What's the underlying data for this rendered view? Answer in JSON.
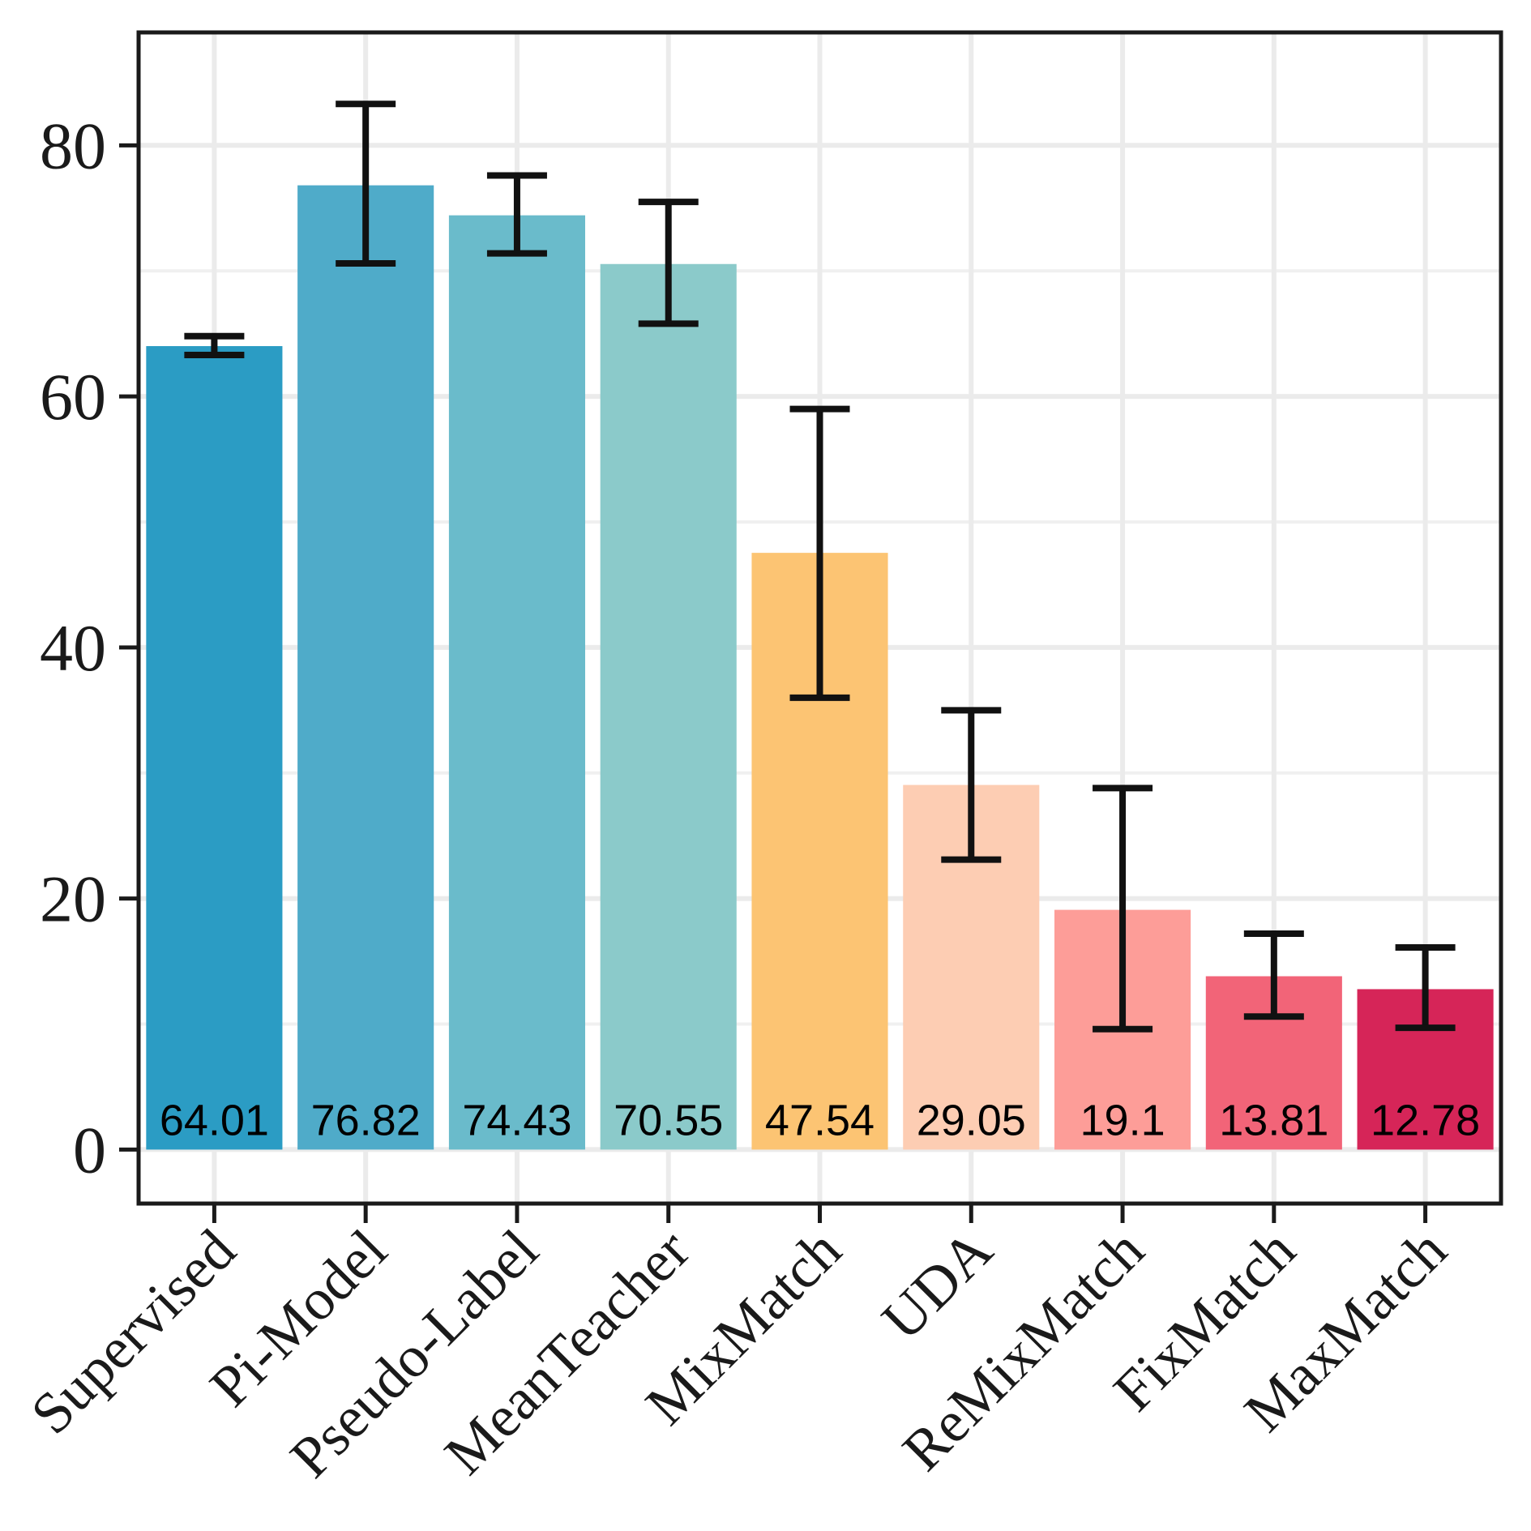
{
  "chart_data": {
    "type": "bar",
    "title": "",
    "xlabel": "",
    "ylabel": "",
    "ylim": [
      -4.3,
      89
    ],
    "yticks": [
      0,
      20,
      40,
      60,
      80
    ],
    "tick_labels": [
      "0",
      "20",
      "40",
      "60",
      "80"
    ],
    "grid": true,
    "categories": [
      "Supervised",
      "Pi-Model",
      "Pseudo-Label",
      "MeanTeacher",
      "MixMatch",
      "UDA",
      "ReMixMatch",
      "FixMatch",
      "MaxMatch"
    ],
    "values": [
      64.01,
      76.82,
      74.43,
      70.55,
      47.54,
      29.05,
      19.1,
      13.81,
      12.78
    ],
    "value_labels": [
      "64.01",
      "76.82",
      "74.43",
      "70.55",
      "47.54",
      "29.05",
      "19.1",
      "13.81",
      "12.78"
    ],
    "error_low": [
      63.3,
      70.6,
      71.4,
      65.8,
      36.0,
      23.1,
      9.6,
      10.6,
      9.7
    ],
    "error_high": [
      64.8,
      83.3,
      77.6,
      75.5,
      59.0,
      35.0,
      28.8,
      17.2,
      16.1
    ],
    "colors": [
      "#2b9cc4",
      "#4fabc9",
      "#6abbcb",
      "#8bcaca",
      "#fcc473",
      "#fdcdb3",
      "#fd9d98",
      "#f26478",
      "#d62558"
    ],
    "legend": "none"
  }
}
